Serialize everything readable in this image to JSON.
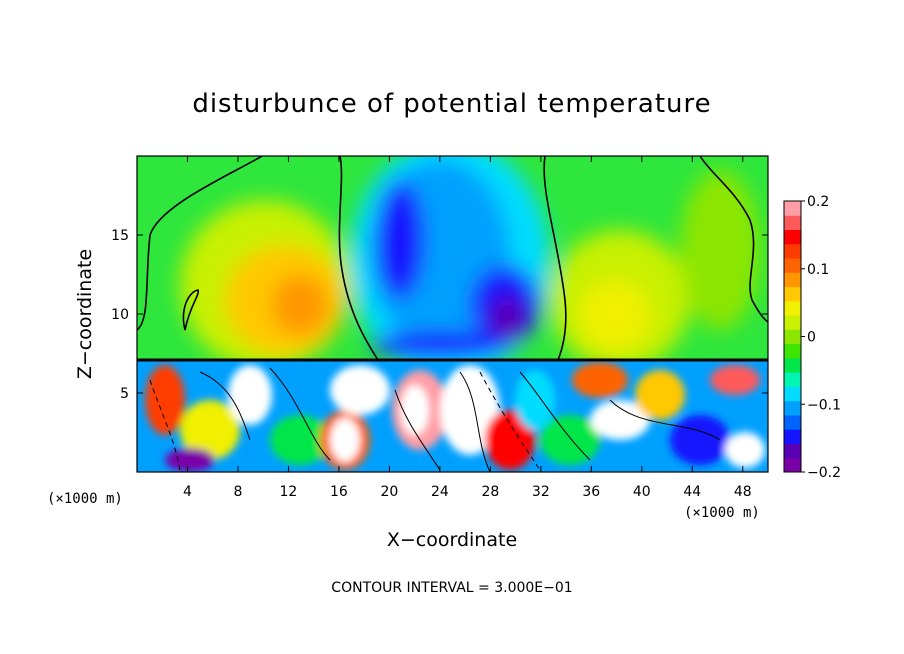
{
  "chart_data": {
    "type": "heatmap",
    "title": "disturbunce of potential temperature",
    "xlabel": "X−coordinate",
    "ylabel": "Z−coordinate",
    "x_unit": "(×1000 m)",
    "y_unit": "(×1000 m)",
    "xlim": [
      0,
      50
    ],
    "ylim": [
      0,
      20
    ],
    "x_ticks": [
      4,
      8,
      12,
      16,
      20,
      24,
      28,
      32,
      36,
      40,
      44,
      48
    ],
    "x_tick_labels": [
      "4",
      "8",
      "12",
      "16",
      "20",
      "24",
      "28",
      "32",
      "36",
      "40",
      "44",
      "48"
    ],
    "y_ticks": [
      5,
      10,
      15
    ],
    "y_tick_labels": [
      "5",
      "10",
      "15"
    ],
    "colorbar": {
      "min": -0.2,
      "max": 0.2,
      "ticks": [
        0.2,
        0.1,
        0,
        -0.1,
        -0.2
      ],
      "tick_labels": [
        "0.2",
        "0.1",
        "0",
        "−0.1",
        "−0.2"
      ],
      "colors": [
        "#7a00a8",
        "#5a00b4",
        "#1414ff",
        "#0064ff",
        "#00a0ff",
        "#00dcff",
        "#00f5b0",
        "#00e64a",
        "#3ce600",
        "#8ce600",
        "#c8f000",
        "#f0f000",
        "#ffc800",
        "#ff9600",
        "#ff6400",
        "#ff3c00",
        "#ff0000",
        "#ff5a5a",
        "#ff9ea6"
      ]
    },
    "contour_interval_label": "CONTOUR INTERVAL = 3.000E−01",
    "layer_boundary_z": 7.2
  }
}
